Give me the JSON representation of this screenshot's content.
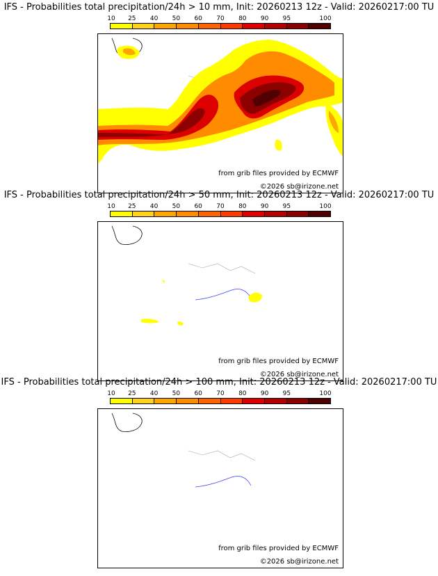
{
  "colors": {
    "scale": [
      "#ffff00",
      "#ffd21e",
      "#ffa500",
      "#ff8c00",
      "#ff6400",
      "#ff3c00",
      "#dc0000",
      "#b40000",
      "#8c0000",
      "#500000"
    ],
    "coast": "#000000",
    "rivers": "#3b3bff",
    "regions": "#a8a8a8"
  },
  "colorbar": {
    "ticks": [
      "10",
      "25",
      "40",
      "50",
      "60",
      "70",
      "80",
      "90",
      "95",
      "100"
    ]
  },
  "panels": [
    {
      "title": "IFS - Probabilities total precipitation/24h > 10 mm, Init: 20260213 12z - Valid: 20260217:00 TU",
      "credit_ecmwf": "from grib files provided by ECMWF",
      "credit_copy": "©2026 sb@irizone.net"
    },
    {
      "title": "IFS - Probabilities total precipitation/24h > 50 mm, Init: 20260213 12z - Valid: 20260217:00 TU",
      "credit_ecmwf": "from grib files provided by ECMWF",
      "credit_copy": "©2026 sb@irizone.net"
    },
    {
      "title": "IFS - Probabilities total precipitation/24h > 100 mm, Init: 20260213 12z - Valid: 20260217:00 TU",
      "credit_ecmwf": "from grib files provided by ECMWF",
      "credit_copy": "©2026 sb@irizone.net"
    }
  ]
}
